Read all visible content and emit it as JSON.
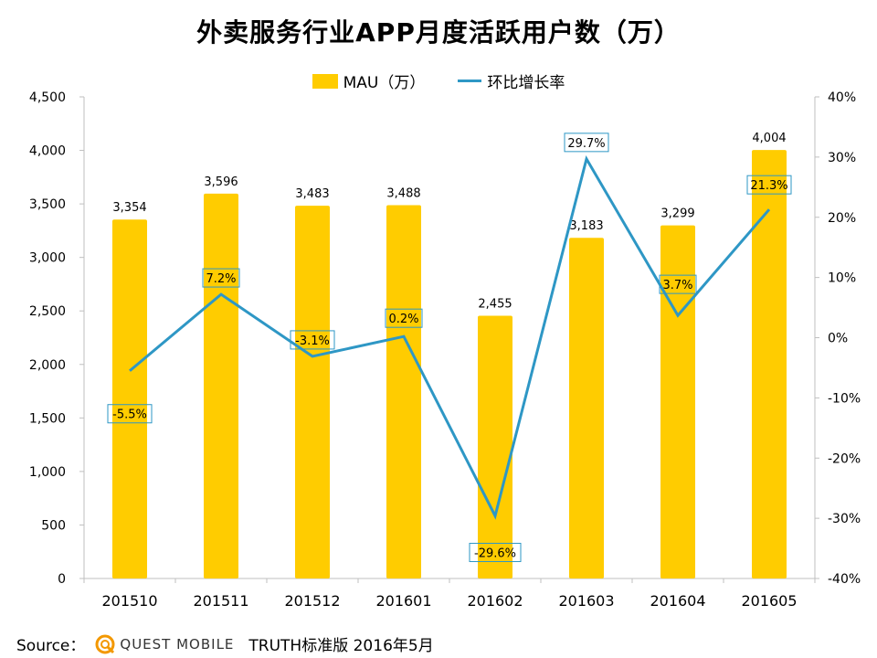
{
  "title": "外卖服务行业APP月度活跃用户数（万）",
  "legend": {
    "bar_label": "MAU（万）",
    "line_label": "环比增长率"
  },
  "colors": {
    "bar": "#FFCC00",
    "line": "#2E97C5"
  },
  "source": {
    "label": "Source：",
    "logo_text": "QUEST MOBILE",
    "note": "TRUTH标准版 2016年5月"
  },
  "chart_data": {
    "type": "bar",
    "title": "外卖服务行业APP月度活跃用户数（万）",
    "categories": [
      "201510",
      "201511",
      "201512",
      "201601",
      "201602",
      "201603",
      "201604",
      "201605"
    ],
    "series": [
      {
        "name": "MAU（万）",
        "type": "bar",
        "axis": "left",
        "values": [
          3354,
          3596,
          3483,
          3488,
          2455,
          3183,
          3299,
          4004
        ],
        "labels": [
          "3,354",
          "3,596",
          "3,483",
          "3,488",
          "2,455",
          "3,183",
          "3,299",
          "4,004"
        ]
      },
      {
        "name": "环比增长率",
        "type": "line",
        "axis": "right",
        "values": [
          -5.5,
          7.2,
          -3.1,
          0.2,
          -29.6,
          29.7,
          3.7,
          21.3
        ],
        "labels": [
          "-5.5%",
          "7.2%",
          "-3.1%",
          "0.2%",
          "-29.6%",
          "29.7%",
          "3.7%",
          "21.3%"
        ]
      }
    ],
    "left_axis": {
      "ylim": [
        0,
        4500
      ],
      "ticks": [
        0,
        500,
        1000,
        1500,
        2000,
        2500,
        3000,
        3500,
        4000,
        4500
      ],
      "tick_labels": [
        "0",
        "500",
        "1,000",
        "1,500",
        "2,000",
        "2,500",
        "3,000",
        "3,500",
        "4,000",
        "4,500"
      ]
    },
    "right_axis": {
      "ylim": [
        -40,
        40
      ],
      "ticks": [
        -40,
        -30,
        -20,
        -10,
        0,
        10,
        20,
        30,
        40
      ],
      "tick_labels": [
        "-40%",
        "-30%",
        "-20%",
        "-10%",
        "0%",
        "10%",
        "20%",
        "30%",
        "40%"
      ]
    },
    "legend_position": "top-center",
    "grid": false
  }
}
